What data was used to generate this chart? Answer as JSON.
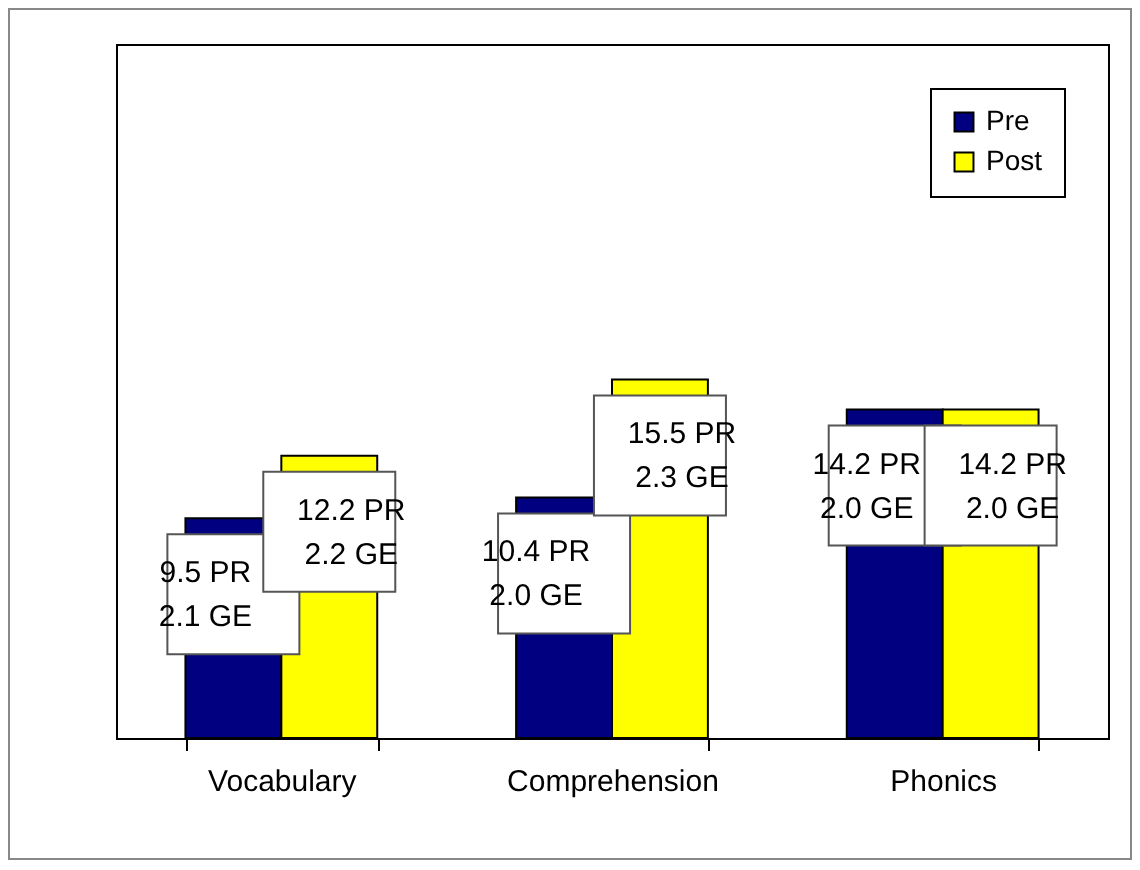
{
  "chart_data": {
    "type": "bar",
    "categories": [
      "Vocabulary",
      "Comprehension",
      "Phonics"
    ],
    "series": [
      {
        "name": "Pre",
        "color": "#000080",
        "values": [
          9.5,
          10.4,
          14.2
        ],
        "value_labels": [
          "9.5 PR\n2.1 GE",
          "10.4 PR\n2.0 GE",
          "14.2 PR\n2.0 GE"
        ]
      },
      {
        "name": "Post",
        "color": "#ffff00",
        "values": [
          12.2,
          15.5,
          14.2
        ],
        "value_labels": [
          "12.2 PR\n2.2 GE",
          "15.5 PR\n2.3 GE",
          "14.2 PR\n2.0 GE"
        ]
      }
    ],
    "ylim": [
      0,
      30
    ],
    "legend": "top right"
  }
}
